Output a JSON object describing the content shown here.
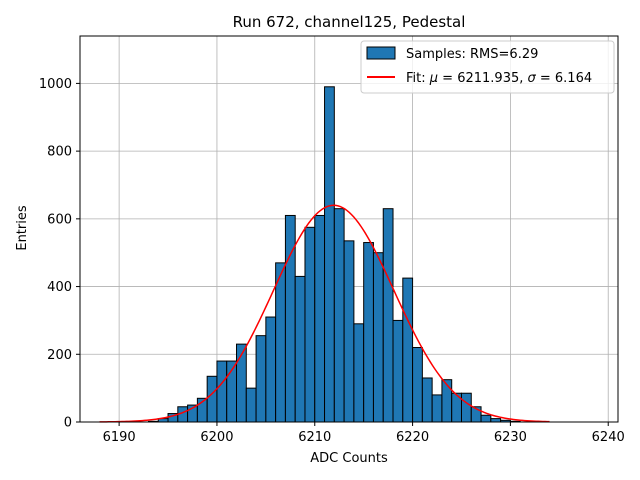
{
  "chart_data": {
    "type": "bar",
    "title": "Run 672, channel125, Pedestal",
    "xlabel": "ADC Counts",
    "ylabel": "Entries",
    "xlim": [
      6186,
      6241
    ],
    "ylim": [
      0,
      1140
    ],
    "xticks": [
      6190,
      6200,
      6210,
      6220,
      6230,
      6240
    ],
    "yticks": [
      0,
      200,
      400,
      600,
      800,
      1000
    ],
    "grid": true,
    "legend_position": "top-right",
    "histogram": {
      "name": "Samples: RMS=6.29",
      "color": "#1f77b4",
      "edge_color": "#000000",
      "bin_edges": [
        6188,
        6189,
        6190,
        6191,
        6192,
        6193,
        6194,
        6195,
        6196,
        6197,
        6198,
        6199,
        6200,
        6201,
        6202,
        6203,
        6204,
        6205,
        6206,
        6207,
        6208,
        6209,
        6210,
        6211,
        6212,
        6213,
        6214,
        6215,
        6216,
        6217,
        6218,
        6219,
        6220,
        6221,
        6222,
        6223,
        6224,
        6225,
        6226,
        6227,
        6228,
        6229,
        6230,
        6231,
        6232,
        6233,
        6234
      ],
      "counts": [
        0,
        0,
        0,
        0,
        0,
        2,
        10,
        25,
        45,
        50,
        70,
        135,
        180,
        180,
        230,
        100,
        255,
        310,
        470,
        610,
        430,
        575,
        610,
        990,
        630,
        535,
        290,
        530,
        500,
        630,
        300,
        425,
        220,
        130,
        80,
        125,
        85,
        85,
        45,
        20,
        10,
        5,
        2,
        0,
        0,
        0
      ]
    },
    "fit": {
      "name": "Fit: μ = 6211.935, σ = 6.164",
      "label_parts": [
        "Fit: ",
        "μ",
        " = 6211.935, ",
        "σ",
        " = 6.164"
      ],
      "color": "#ff0000",
      "mu": 6211.935,
      "sigma": 6.164,
      "amplitude": 640,
      "x_range": [
        6188,
        6234
      ]
    }
  }
}
